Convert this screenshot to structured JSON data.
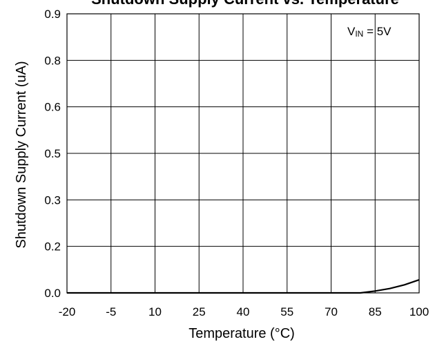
{
  "chart_data": {
    "type": "line",
    "title": "Shutdown Supply Current vs. Temperature",
    "xlabel": "Temperature (°C)",
    "ylabel": "Shutdown Supply Current (uA)",
    "x_ticks": [
      "-20",
      "-5",
      "10",
      "25",
      "40",
      "55",
      "70",
      "85",
      "100"
    ],
    "y_ticks": [
      "0.0",
      "0.2",
      "0.3",
      "0.5",
      "0.6",
      "0.8",
      "0.9"
    ],
    "xlim": [
      -20,
      100
    ],
    "ylim": [
      0,
      0.9
    ],
    "grid": true,
    "legend": "none",
    "annotation": {
      "main": "V",
      "sub": "IN",
      "rest": " = 5V"
    },
    "series": [
      {
        "x": [
          -20,
          -5,
          10,
          25,
          40,
          55,
          70,
          80,
          85,
          90,
          95,
          100
        ],
        "y": [
          0.0,
          0.0,
          0.0,
          0.0,
          0.0,
          0.0,
          0.0,
          0.0,
          0.006,
          0.014,
          0.026,
          0.042
        ]
      }
    ],
    "line_color": "#000000"
  }
}
